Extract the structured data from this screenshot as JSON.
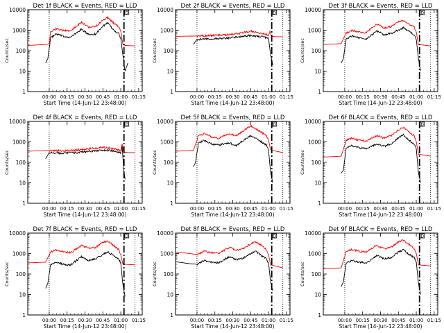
{
  "time_labels": [
    "00:00",
    "00:15",
    "00:30",
    "00:45",
    "01:00",
    "01:15"
  ],
  "y_tick_labels": [
    "1",
    "10",
    "100",
    "1000",
    "10000"
  ],
  "dotted_marker_label": "D",
  "colors": {
    "events": "#000000",
    "lld": "#ff0000",
    "axes": "#000000"
  },
  "chart_data": [
    {
      "type": "line",
      "title": "Det 1f BLACK = Events, RED = LLD",
      "xlabel": "Start Time (14-Jun-12 23:48:00)",
      "ylabel": "Counts/sec",
      "yscale": "log",
      "ylim": [
        1,
        10000
      ],
      "series": [
        {
          "name": "Events",
          "color": "#000000",
          "x": [
            -0.05,
            -0.03,
            -0.02,
            0.02,
            0.1,
            0.2,
            0.3,
            0.45,
            0.55,
            0.65,
            0.75,
            0.82,
            0.9,
            0.97,
            1.0,
            1.03,
            1.06,
            1.1
          ],
          "y": [
            25,
            35,
            40,
            420,
            650,
            500,
            450,
            1100,
            620,
            650,
            1600,
            2200,
            1000,
            700,
            400,
            60,
            10,
            25
          ]
        },
        {
          "name": "LLD",
          "color": "#ff0000",
          "x": [
            -0.3,
            -0.05,
            0.0,
            0.02,
            0.1,
            0.2,
            0.3,
            0.45,
            0.55,
            0.65,
            0.75,
            0.82,
            0.9,
            0.97,
            1.0,
            1.03,
            1.06,
            1.2
          ],
          "y": [
            180,
            200,
            220,
            800,
            1200,
            950,
            900,
            2500,
            1400,
            1500,
            3000,
            4200,
            2200,
            1500,
            900,
            200,
            180,
            170
          ]
        }
      ]
    },
    {
      "type": "line",
      "title": "Det 2f BLACK = Events, RED = LLD",
      "xlabel": "Start Time (14-Jun-12 23:48:00)",
      "ylabel": "Counts/sec",
      "yscale": "log",
      "ylim": [
        1,
        10000
      ],
      "series": [
        {
          "name": "Events",
          "color": "#000000",
          "x": [
            -0.05,
            0.0,
            0.2,
            0.4,
            0.6,
            0.75,
            0.85,
            0.95,
            1.0,
            1.03,
            1.06
          ],
          "y": [
            200,
            350,
            380,
            400,
            480,
            550,
            500,
            450,
            400,
            60,
            20
          ]
        },
        {
          "name": "LLD",
          "color": "#ff0000",
          "x": [
            -0.3,
            0.0,
            0.2,
            0.4,
            0.6,
            0.75,
            0.85,
            0.95,
            1.0,
            1.02,
            1.04,
            1.1,
            1.2
          ],
          "y": [
            500,
            520,
            550,
            600,
            700,
            900,
            750,
            650,
            550,
            900,
            500,
            480,
            480
          ]
        }
      ]
    },
    {
      "type": "line",
      "title": "Det 3f BLACK = Events, RED = LLD",
      "xlabel": "Start Time (14-Jun-12 23:48:00)",
      "ylabel": "Counts/sec",
      "yscale": "log",
      "ylim": [
        1,
        10000
      ],
      "series": [
        {
          "name": "Events",
          "color": "#000000",
          "x": [
            -0.05,
            -0.02,
            0.02,
            0.1,
            0.2,
            0.3,
            0.45,
            0.55,
            0.65,
            0.75,
            0.82,
            0.9,
            0.97,
            1.0,
            1.03,
            1.06
          ],
          "y": [
            25,
            40,
            380,
            520,
            420,
            380,
            900,
            600,
            700,
            1000,
            1300,
            900,
            600,
            350,
            40,
            10
          ]
        },
        {
          "name": "LLD",
          "color": "#ff0000",
          "x": [
            -0.3,
            -0.05,
            0.02,
            0.1,
            0.2,
            0.3,
            0.45,
            0.55,
            0.65,
            0.75,
            0.82,
            0.9,
            0.97,
            1.0,
            1.03,
            1.2
          ],
          "y": [
            200,
            220,
            750,
            1000,
            800,
            750,
            2000,
            1300,
            1500,
            2500,
            3000,
            2000,
            1400,
            800,
            200,
            170
          ]
        }
      ]
    },
    {
      "type": "line",
      "title": "Det 4f BLACK = Events, RED = LLD",
      "xlabel": "Start Time (14-Jun-12 23:48:00)",
      "ylabel": "Counts/sec",
      "yscale": "log",
      "ylim": [
        1,
        10000
      ],
      "series": [
        {
          "name": "Events",
          "color": "#000000",
          "x": [
            -0.05,
            0.0,
            0.2,
            0.4,
            0.6,
            0.75,
            0.85,
            0.95,
            1.0,
            1.02,
            1.04,
            1.06
          ],
          "y": [
            150,
            300,
            280,
            300,
            350,
            400,
            380,
            320,
            300,
            600,
            50,
            15
          ]
        },
        {
          "name": "LLD",
          "color": "#ff0000",
          "x": [
            -0.3,
            0.0,
            0.2,
            0.4,
            0.6,
            0.75,
            0.85,
            0.95,
            1.0,
            1.02,
            1.04,
            1.1,
            1.2
          ],
          "y": [
            350,
            380,
            360,
            400,
            480,
            550,
            500,
            420,
            380,
            800,
            320,
            300,
            300
          ]
        }
      ]
    },
    {
      "type": "line",
      "title": "Det 5f BLACK = Events, RED = LLD",
      "xlabel": "Start Time (14-Jun-12 23:48:00)",
      "ylabel": "Counts/sec",
      "yscale": "log",
      "ylim": [
        1,
        10000
      ],
      "series": [
        {
          "name": "Events",
          "color": "#000000",
          "x": [
            -0.05,
            -0.02,
            0.02,
            0.1,
            0.2,
            0.3,
            0.45,
            0.55,
            0.65,
            0.75,
            0.82,
            0.9,
            0.97,
            1.0,
            1.03,
            1.06
          ],
          "y": [
            60,
            100,
            900,
            1200,
            800,
            700,
            900,
            650,
            1200,
            2000,
            1500,
            1000,
            700,
            400,
            30,
            10
          ]
        },
        {
          "name": "LLD",
          "color": "#ff0000",
          "x": [
            -0.3,
            -0.05,
            0.02,
            0.1,
            0.2,
            0.3,
            0.45,
            0.55,
            0.65,
            0.75,
            0.82,
            0.9,
            0.97,
            1.0,
            1.03,
            1.2
          ],
          "y": [
            350,
            380,
            2000,
            2500,
            1800,
            1500,
            2500,
            2000,
            3500,
            6000,
            4500,
            3000,
            2000,
            1200,
            400,
            300
          ]
        }
      ]
    },
    {
      "type": "line",
      "title": "Det 6f BLACK = Events, RED = LLD",
      "xlabel": "Start Time (14-Jun-12 23:48:00)",
      "ylabel": "Counts/sec",
      "yscale": "log",
      "ylim": [
        1,
        10000
      ],
      "series": [
        {
          "name": "Events",
          "color": "#000000",
          "x": [
            -0.05,
            -0.02,
            0.02,
            0.1,
            0.2,
            0.3,
            0.45,
            0.55,
            0.65,
            0.75,
            0.82,
            0.9,
            0.97,
            1.0,
            1.03,
            1.06
          ],
          "y": [
            30,
            40,
            500,
            650,
            500,
            480,
            800,
            600,
            800,
            1600,
            2200,
            1200,
            800,
            450,
            30,
            10
          ]
        },
        {
          "name": "LLD",
          "color": "#ff0000",
          "x": [
            -0.3,
            -0.05,
            0.02,
            0.1,
            0.2,
            0.3,
            0.45,
            0.55,
            0.65,
            0.75,
            0.82,
            0.9,
            0.97,
            1.0,
            1.03,
            1.2
          ],
          "y": [
            180,
            200,
            1200,
            1500,
            1200,
            1100,
            2000,
            1500,
            2000,
            3800,
            5000,
            3000,
            2000,
            1000,
            250,
            200
          ]
        }
      ]
    },
    {
      "type": "line",
      "title": "Det 7f BLACK = Events, RED = LLD",
      "xlabel": "Start Time (14-Jun-12 23:48:00)",
      "ylabel": "Counts/sec",
      "yscale": "log",
      "ylim": [
        1,
        10000
      ],
      "series": [
        {
          "name": "Events",
          "color": "#000000",
          "x": [
            -0.05,
            -0.02,
            0.02,
            0.1,
            0.2,
            0.3,
            0.45,
            0.55,
            0.65,
            0.75,
            0.82,
            0.9,
            0.97,
            1.0,
            1.03,
            1.06
          ],
          "y": [
            20,
            35,
            300,
            380,
            300,
            280,
            700,
            450,
            550,
            900,
            1200,
            800,
            550,
            350,
            30,
            8
          ]
        },
        {
          "name": "LLD",
          "color": "#ff0000",
          "x": [
            -0.3,
            -0.05,
            0.02,
            0.1,
            0.2,
            0.3,
            0.45,
            0.55,
            0.65,
            0.75,
            0.82,
            0.9,
            0.97,
            1.0,
            1.03,
            1.2
          ],
          "y": [
            350,
            380,
            1200,
            1500,
            1200,
            1100,
            2500,
            1800,
            2000,
            3500,
            4000,
            2500,
            1600,
            900,
            300,
            280
          ]
        }
      ]
    },
    {
      "type": "line",
      "title": "Det 8f BLACK = Events, RED = LLD",
      "xlabel": "Start Time (14-Jun-12 23:48:00)",
      "ylabel": "Counts/sec",
      "yscale": "log",
      "ylim": [
        1,
        10000
      ],
      "series": [
        {
          "name": "Events",
          "color": "#000000",
          "x": [
            -0.3,
            -0.1,
            0.0,
            0.1,
            0.2,
            0.3,
            0.45,
            0.55,
            0.65,
            0.75,
            0.82,
            0.9,
            0.97,
            1.0,
            1.03,
            1.06
          ],
          "y": [
            400,
            320,
            300,
            450,
            380,
            350,
            700,
            500,
            600,
            1000,
            1300,
            800,
            550,
            350,
            40,
            15
          ]
        },
        {
          "name": "LLD",
          "color": "#ff0000",
          "x": [
            -0.3,
            -0.1,
            0.0,
            0.1,
            0.2,
            0.3,
            0.45,
            0.55,
            0.65,
            0.75,
            0.82,
            0.9,
            0.97,
            1.0,
            1.03,
            1.2
          ],
          "y": [
            1200,
            1000,
            900,
            1300,
            1100,
            1000,
            2000,
            1500,
            1800,
            3000,
            3800,
            2500,
            1600,
            900,
            280,
            200
          ]
        }
      ]
    },
    {
      "type": "line",
      "title": "Det 9f BLACK = Events, RED = LLD",
      "xlabel": "Start Time (14-Jun-12 23:48:00)",
      "ylabel": "Counts/sec",
      "yscale": "log",
      "ylim": [
        1,
        10000
      ],
      "series": [
        {
          "name": "Events",
          "color": "#000000",
          "x": [
            -0.05,
            -0.02,
            0.02,
            0.1,
            0.2,
            0.3,
            0.45,
            0.55,
            0.65,
            0.75,
            0.82,
            0.9,
            0.97,
            1.0,
            1.03,
            1.06
          ],
          "y": [
            25,
            40,
            350,
            450,
            380,
            350,
            800,
            550,
            650,
            1200,
            1500,
            900,
            650,
            380,
            35,
            10
          ]
        },
        {
          "name": "LLD",
          "color": "#ff0000",
          "x": [
            -0.3,
            -0.05,
            0.02,
            0.1,
            0.2,
            0.3,
            0.45,
            0.55,
            0.65,
            0.75,
            0.82,
            0.9,
            0.97,
            1.0,
            1.03,
            1.2
          ],
          "y": [
            180,
            200,
            1300,
            1600,
            1300,
            1200,
            2500,
            1700,
            2000,
            3800,
            4500,
            2800,
            1800,
            1000,
            280,
            250
          ]
        }
      ]
    }
  ]
}
